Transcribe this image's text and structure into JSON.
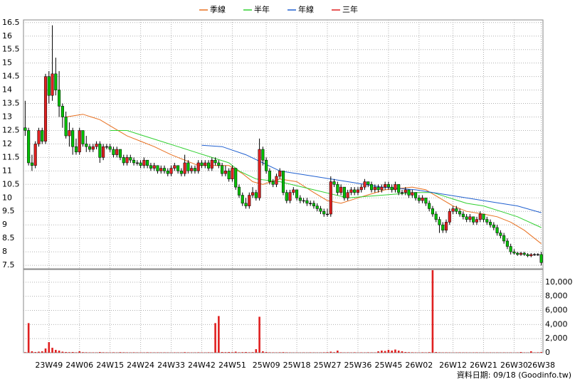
{
  "chart_data": {
    "type": "candlestick",
    "footer": "資料日期: 09/18 (Goodinfo.tw)",
    "ylim": [
      7.37,
      16.6
    ],
    "yticks": [
      7.5,
      8,
      8.5,
      9,
      9.5,
      10,
      10.5,
      11,
      11.5,
      12,
      12.5,
      13,
      13.5,
      14,
      14.5,
      15,
      15.5,
      16,
      16.5
    ],
    "volume_ylim": [
      0,
      11800
    ],
    "volume_yticks": [
      0,
      {
        "value": 2000,
        "label": "2,000"
      },
      {
        "value": 4000,
        "label": "4,000"
      },
      {
        "value": 6000,
        "label": "6,000"
      },
      {
        "value": 8000,
        "label": "8,000"
      },
      {
        "value": 10000,
        "label": "10,000"
      }
    ],
    "grid": true,
    "up_color": "#e02020",
    "down_color": "#00c000",
    "volume_color": "#e02020",
    "categories": [
      null,
      null,
      null,
      null,
      null,
      null,
      null,
      "23W49",
      null,
      null,
      null,
      null,
      null,
      null,
      null,
      null,
      "24W06",
      null,
      null,
      null,
      null,
      null,
      null,
      null,
      null,
      "24W15",
      null,
      null,
      null,
      null,
      null,
      null,
      null,
      null,
      "24W24",
      null,
      null,
      null,
      null,
      null,
      null,
      null,
      null,
      "24W33",
      null,
      null,
      null,
      null,
      null,
      null,
      null,
      null,
      "24W42",
      null,
      null,
      null,
      null,
      null,
      null,
      null,
      null,
      "24W51",
      null,
      null,
      null,
      null,
      null,
      null,
      null,
      null,
      null,
      "25W09",
      null,
      null,
      null,
      null,
      null,
      null,
      null,
      null,
      "25W18",
      null,
      null,
      null,
      null,
      null,
      null,
      null,
      null,
      "25W27",
      null,
      null,
      null,
      null,
      null,
      null,
      null,
      null,
      "25W36",
      null,
      null,
      null,
      null,
      null,
      null,
      null,
      null,
      "25W45",
      null,
      null,
      null,
      null,
      null,
      null,
      null,
      null,
      "26W02",
      null,
      null,
      null,
      null,
      null,
      null,
      null,
      null,
      null,
      "26W12",
      null,
      null,
      null,
      null,
      null,
      null,
      null,
      null,
      "26W21",
      null,
      null,
      null,
      null,
      null,
      null,
      null,
      null,
      "26W30",
      null,
      null,
      null,
      null,
      null,
      null,
      null,
      "26W38"
    ],
    "ohlc": [
      [
        12.6,
        13.6,
        12.3,
        12.5
      ],
      [
        12.5,
        12.6,
        11.2,
        11.3
      ],
      [
        11.3,
        11.6,
        11.0,
        11.2
      ],
      [
        11.2,
        12.1,
        11.1,
        12.0
      ],
      [
        12.0,
        12.6,
        11.9,
        12.5
      ],
      [
        12.5,
        12.6,
        12.0,
        12.1
      ],
      [
        12.1,
        14.6,
        12.0,
        14.5
      ],
      [
        14.5,
        14.7,
        13.5,
        13.8
      ],
      [
        13.8,
        16.4,
        13.6,
        14.6
      ],
      [
        14.6,
        15.2,
        13.8,
        14.0
      ],
      [
        14.0,
        14.7,
        13.0,
        13.4
      ],
      [
        13.4,
        13.5,
        12.6,
        13.0
      ],
      [
        13.0,
        13.2,
        12.2,
        12.3
      ],
      [
        12.3,
        12.8,
        11.9,
        12.5
      ],
      [
        12.5,
        12.6,
        11.6,
        11.9
      ],
      [
        11.9,
        12.2,
        11.6,
        11.7
      ],
      [
        11.7,
        12.6,
        11.6,
        12.5
      ],
      [
        12.5,
        12.5,
        11.9,
        12.0
      ],
      [
        12.0,
        12.3,
        11.7,
        11.9
      ],
      [
        11.9,
        12.0,
        11.7,
        11.8
      ],
      [
        11.8,
        12.0,
        11.7,
        11.9
      ],
      [
        11.9,
        12.1,
        11.8,
        12.0
      ],
      [
        12.0,
        12.1,
        11.3,
        11.5
      ],
      [
        11.5,
        12.0,
        11.4,
        11.9
      ],
      [
        11.9,
        12.0,
        11.8,
        11.9
      ],
      [
        11.9,
        12.0,
        11.7,
        11.8
      ],
      [
        11.8,
        11.9,
        11.5,
        11.6
      ],
      [
        11.6,
        11.9,
        11.5,
        11.8
      ],
      [
        11.8,
        11.8,
        11.4,
        11.5
      ],
      [
        11.5,
        11.6,
        11.2,
        11.3
      ],
      [
        11.3,
        11.6,
        11.2,
        11.5
      ],
      [
        11.5,
        11.6,
        11.3,
        11.4
      ],
      [
        11.4,
        11.5,
        11.2,
        11.3
      ],
      [
        11.3,
        11.4,
        11.2,
        11.3
      ],
      [
        11.3,
        11.4,
        11.1,
        11.2
      ],
      [
        11.2,
        11.5,
        11.1,
        11.4
      ],
      [
        11.4,
        11.4,
        11.1,
        11.2
      ],
      [
        11.2,
        11.3,
        11.0,
        11.1
      ],
      [
        11.1,
        11.3,
        11.0,
        11.2
      ],
      [
        11.2,
        11.2,
        10.9,
        11.0
      ],
      [
        11.0,
        11.2,
        10.9,
        11.1
      ],
      [
        11.1,
        11.2,
        10.9,
        11.0
      ],
      [
        11.0,
        11.1,
        10.8,
        10.9
      ],
      [
        10.9,
        11.2,
        10.8,
        11.1
      ],
      [
        11.1,
        11.3,
        11.0,
        11.2
      ],
      [
        11.2,
        11.2,
        10.9,
        11.0
      ],
      [
        11.0,
        11.1,
        10.8,
        10.9
      ],
      [
        10.9,
        11.6,
        10.8,
        11.3
      ],
      [
        11.3,
        11.4,
        10.9,
        11.0
      ],
      [
        11.0,
        11.2,
        10.9,
        11.1
      ],
      [
        11.1,
        11.2,
        10.9,
        11.0
      ],
      [
        11.0,
        11.4,
        10.9,
        11.3
      ],
      [
        11.3,
        11.4,
        11.1,
        11.2
      ],
      [
        11.2,
        11.4,
        11.1,
        11.3
      ],
      [
        11.3,
        11.4,
        11.0,
        11.1
      ],
      [
        11.1,
        11.5,
        11.0,
        11.4
      ],
      [
        11.4,
        11.5,
        11.2,
        11.3
      ],
      [
        11.3,
        11.4,
        11.1,
        11.2
      ],
      [
        11.2,
        11.3,
        10.8,
        10.9
      ],
      [
        10.9,
        11.2,
        10.8,
        11.0
      ],
      [
        11.0,
        11.1,
        10.6,
        10.7
      ],
      [
        10.7,
        11.2,
        10.6,
        11.1
      ],
      [
        11.1,
        11.1,
        10.3,
        10.4
      ],
      [
        10.4,
        10.5,
        10.0,
        10.1
      ],
      [
        10.1,
        10.2,
        9.7,
        9.8
      ],
      [
        9.8,
        10.0,
        9.6,
        9.7
      ],
      [
        9.7,
        10.2,
        9.6,
        10.1
      ],
      [
        10.1,
        10.4,
        10.0,
        10.2
      ],
      [
        10.2,
        10.3,
        9.9,
        10.0
      ],
      [
        10.0,
        12.2,
        9.9,
        11.8
      ],
      [
        11.8,
        11.9,
        11.2,
        11.4
      ],
      [
        11.4,
        11.5,
        10.9,
        11.0
      ],
      [
        11.0,
        11.1,
        10.5,
        10.6
      ],
      [
        10.6,
        10.7,
        10.4,
        10.5
      ],
      [
        10.5,
        10.9,
        10.4,
        10.8
      ],
      [
        10.8,
        11.1,
        10.7,
        11.0
      ],
      [
        11.0,
        11.0,
        10.1,
        10.2
      ],
      [
        10.2,
        10.3,
        9.8,
        9.9
      ],
      [
        9.9,
        10.3,
        9.8,
        10.2
      ],
      [
        10.2,
        10.4,
        10.1,
        10.3
      ],
      [
        10.3,
        10.3,
        9.9,
        10.0
      ],
      [
        10.0,
        10.1,
        9.8,
        9.9
      ],
      [
        9.9,
        10.0,
        9.8,
        9.9
      ],
      [
        9.9,
        10.0,
        9.7,
        9.8
      ],
      [
        9.8,
        9.9,
        9.7,
        9.8
      ],
      [
        9.8,
        9.9,
        9.6,
        9.7
      ],
      [
        9.7,
        9.8,
        9.5,
        9.6
      ],
      [
        9.6,
        9.7,
        9.4,
        9.5
      ],
      [
        9.5,
        9.6,
        9.3,
        9.4
      ],
      [
        9.4,
        9.6,
        9.3,
        9.4
      ],
      [
        9.4,
        10.8,
        9.3,
        10.6
      ],
      [
        10.6,
        10.7,
        10.4,
        10.5
      ],
      [
        10.5,
        10.6,
        10.1,
        10.2
      ],
      [
        10.2,
        10.5,
        10.1,
        10.4
      ],
      [
        10.4,
        10.4,
        9.9,
        10.0
      ],
      [
        10.0,
        10.3,
        9.9,
        10.2
      ],
      [
        10.2,
        10.4,
        10.1,
        10.3
      ],
      [
        10.3,
        10.4,
        10.1,
        10.2
      ],
      [
        10.2,
        10.4,
        10.1,
        10.3
      ],
      [
        10.3,
        10.5,
        10.2,
        10.4
      ],
      [
        10.4,
        10.7,
        10.3,
        10.6
      ],
      [
        10.6,
        10.6,
        10.4,
        10.5
      ],
      [
        10.5,
        10.6,
        10.2,
        10.3
      ],
      [
        10.3,
        10.5,
        10.2,
        10.4
      ],
      [
        10.4,
        10.5,
        10.2,
        10.3
      ],
      [
        10.3,
        10.5,
        10.2,
        10.4
      ],
      [
        10.4,
        10.6,
        10.3,
        10.5
      ],
      [
        10.5,
        10.6,
        10.3,
        10.4
      ],
      [
        10.4,
        10.5,
        10.2,
        10.3
      ],
      [
        10.3,
        10.6,
        10.2,
        10.5
      ],
      [
        10.5,
        10.5,
        10.1,
        10.2
      ],
      [
        10.2,
        10.3,
        10.1,
        10.2
      ],
      [
        10.2,
        10.4,
        10.1,
        10.3
      ],
      [
        10.3,
        10.3,
        10.0,
        10.1
      ],
      [
        10.1,
        10.3,
        10.0,
        10.2
      ],
      [
        10.2,
        10.2,
        9.9,
        10.0
      ],
      [
        10.0,
        10.1,
        9.8,
        9.9
      ],
      [
        9.9,
        10.1,
        9.8,
        10.0
      ],
      [
        10.0,
        10.0,
        9.7,
        9.8
      ],
      [
        9.8,
        9.9,
        9.5,
        9.6
      ],
      [
        9.6,
        9.7,
        9.3,
        9.4
      ],
      [
        9.4,
        9.5,
        9.1,
        9.2
      ],
      [
        9.2,
        9.3,
        8.7,
        9.0
      ],
      [
        9.0,
        9.1,
        8.7,
        8.8
      ],
      [
        8.8,
        9.2,
        8.7,
        9.1
      ],
      [
        9.1,
        9.6,
        9.0,
        9.5
      ],
      [
        9.5,
        9.7,
        9.4,
        9.6
      ],
      [
        9.6,
        9.7,
        9.4,
        9.5
      ],
      [
        9.5,
        9.6,
        9.3,
        9.4
      ],
      [
        9.4,
        9.5,
        9.2,
        9.3
      ],
      [
        9.3,
        9.4,
        9.1,
        9.2
      ],
      [
        9.2,
        9.4,
        9.1,
        9.3
      ],
      [
        9.3,
        9.3,
        9.0,
        9.1
      ],
      [
        9.1,
        9.3,
        9.0,
        9.2
      ],
      [
        9.2,
        9.5,
        9.1,
        9.4
      ],
      [
        9.4,
        9.4,
        9.1,
        9.2
      ],
      [
        9.2,
        9.3,
        9.0,
        9.1
      ],
      [
        9.1,
        9.2,
        8.9,
        9.0
      ],
      [
        9.0,
        9.1,
        8.8,
        8.9
      ],
      [
        8.9,
        9.0,
        8.6,
        8.7
      ],
      [
        8.7,
        8.8,
        8.5,
        8.6
      ],
      [
        8.6,
        8.7,
        8.3,
        8.4
      ],
      [
        8.4,
        8.5,
        8.1,
        8.2
      ],
      [
        8.2,
        8.3,
        7.9,
        8.0
      ],
      [
        8.0,
        8.1,
        7.9,
        7.95
      ],
      [
        7.95,
        8.0,
        7.85,
        7.9
      ],
      [
        7.9,
        8.0,
        7.85,
        7.95
      ],
      [
        7.95,
        8.0,
        7.85,
        7.9
      ],
      [
        7.9,
        7.95,
        7.8,
        7.85
      ],
      [
        7.85,
        7.95,
        7.8,
        7.9
      ],
      [
        7.9,
        7.95,
        7.85,
        7.9
      ],
      [
        7.9,
        7.95,
        7.85,
        7.9
      ],
      [
        7.9,
        8.0,
        7.5,
        7.6
      ]
    ],
    "volume": [
      80,
      4200,
      200,
      100,
      150,
      200,
      600,
      1500,
      700,
      400,
      300,
      150,
      100,
      80,
      100,
      60,
      200,
      80,
      60,
      50,
      50,
      40,
      100,
      60,
      50,
      50,
      60,
      40,
      80,
      60,
      50,
      40,
      60,
      40,
      50,
      40,
      60,
      50,
      40,
      50,
      40,
      50,
      40,
      30,
      50,
      40,
      40,
      80,
      50,
      40,
      40,
      60,
      50,
      40,
      60,
      50,
      4200,
      5200,
      100,
      80,
      100,
      80,
      150,
      60,
      80,
      100,
      60,
      80,
      500,
      5100,
      200,
      100,
      60,
      50,
      40,
      60,
      80,
      50,
      40,
      30,
      40,
      30,
      40,
      30,
      50,
      40,
      30,
      40,
      60,
      80,
      150,
      80,
      300,
      60,
      40,
      50,
      40,
      60,
      40,
      50,
      40,
      60,
      50,
      40,
      200,
      300,
      250,
      400,
      300,
      450,
      300,
      200,
      100,
      80,
      60,
      50,
      40,
      60,
      50,
      80,
      11700,
      100,
      60,
      40,
      50,
      40,
      30,
      40,
      50,
      40,
      40,
      30,
      40,
      50,
      30,
      40,
      30,
      40,
      30,
      40,
      30,
      40,
      30,
      40,
      30,
      40,
      100,
      40,
      30,
      200,
      40,
      60,
      100
    ],
    "series": [
      {
        "name": "季線",
        "color": "#e87020",
        "x": [
          12,
          17,
          22,
          26,
          30,
          34,
          38,
          43,
          47,
          51,
          56,
          60,
          64,
          67,
          70,
          75,
          80,
          85,
          89,
          93,
          98,
          106,
          114,
          118,
          122,
          126,
          130,
          135,
          139,
          143,
          147,
          152
        ],
        "values": [
          13.0,
          13.1,
          12.9,
          12.6,
          12.3,
          12.1,
          11.9,
          11.6,
          11.4,
          11.2,
          11.2,
          11.2,
          10.9,
          10.6,
          10.5,
          10.7,
          10.6,
          10.2,
          9.9,
          9.8,
          10.0,
          10.3,
          10.4,
          10.3,
          10.0,
          9.7,
          9.5,
          9.4,
          9.3,
          9.1,
          8.8,
          8.3
        ]
      },
      {
        "name": "半年",
        "color": "#30d030",
        "x": [
          25,
          30,
          35,
          40,
          45,
          50,
          55,
          60,
          63,
          68,
          75,
          85,
          95,
          105,
          115,
          120,
          125,
          130,
          135,
          140,
          145,
          152
        ],
        "values": [
          12.5,
          12.5,
          12.3,
          12.1,
          11.9,
          11.7,
          11.5,
          11.3,
          11.0,
          10.7,
          10.6,
          10.3,
          10.0,
          10.1,
          10.2,
          10.2,
          10.0,
          9.8,
          9.7,
          9.5,
          9.3,
          8.9
        ]
      },
      {
        "name": "年線",
        "color": "#2060d0",
        "x": [
          52,
          58,
          65,
          70,
          75,
          85,
          95,
          105,
          115,
          125,
          135,
          145,
          152
        ],
        "values": [
          11.95,
          11.9,
          11.6,
          11.3,
          11.0,
          10.8,
          10.6,
          10.4,
          10.3,
          10.1,
          9.9,
          9.7,
          9.45
        ]
      },
      {
        "name": "三年",
        "color": "#e02020",
        "x": [],
        "values": []
      }
    ]
  }
}
